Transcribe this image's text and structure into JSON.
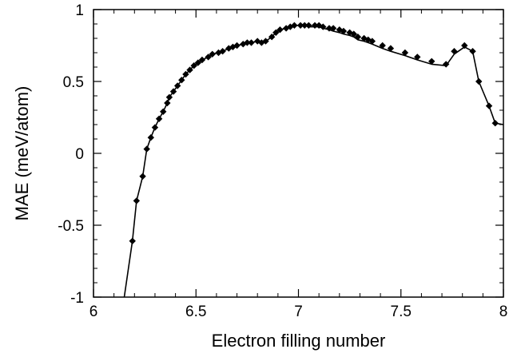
{
  "chart_data": {
    "type": "line",
    "title": "",
    "xlabel": "Electron filling number",
    "ylabel": "MAE (meV/atom)",
    "xlim": [
      6,
      8
    ],
    "ylim": [
      -1,
      1
    ],
    "x_ticks": [
      6,
      6.5,
      7,
      7.5,
      8
    ],
    "x_tick_labels": [
      "6",
      "6.5",
      "7",
      "7.5",
      "8"
    ],
    "y_ticks": [
      -1,
      -0.5,
      0,
      0.5,
      1
    ],
    "y_tick_labels": [
      "-1",
      "-0.5",
      "0",
      "0.5",
      "1"
    ],
    "grid": false,
    "legend": "none",
    "series": [
      {
        "style": "markers",
        "marker": "diamond",
        "color": "#000000",
        "x": [
          6.19,
          6.21,
          6.24,
          6.26,
          6.28,
          6.3,
          6.32,
          6.34,
          6.36,
          6.37,
          6.39,
          6.41,
          6.43,
          6.45,
          6.47,
          6.49,
          6.51,
          6.53,
          6.56,
          6.58,
          6.61,
          6.63,
          6.66,
          6.68,
          6.7,
          6.73,
          6.75,
          6.77,
          6.8,
          6.82,
          6.84,
          6.87,
          6.89,
          6.91,
          6.94,
          6.96,
          6.98,
          7.01,
          7.03,
          7.05,
          7.08,
          7.1,
          7.12,
          7.15,
          7.17,
          7.2,
          7.22,
          7.25,
          7.27,
          7.29,
          7.32,
          7.34,
          7.36,
          7.41,
          7.45,
          7.52,
          7.58,
          7.65,
          7.72,
          7.76,
          7.81,
          7.85,
          7.88,
          7.93,
          7.96
        ],
        "y": [
          -0.61,
          -0.33,
          -0.16,
          0.03,
          0.11,
          0.18,
          0.24,
          0.29,
          0.35,
          0.39,
          0.43,
          0.47,
          0.51,
          0.55,
          0.58,
          0.61,
          0.63,
          0.65,
          0.67,
          0.69,
          0.7,
          0.71,
          0.73,
          0.74,
          0.75,
          0.76,
          0.77,
          0.77,
          0.78,
          0.77,
          0.78,
          0.81,
          0.84,
          0.86,
          0.87,
          0.88,
          0.89,
          0.89,
          0.89,
          0.89,
          0.89,
          0.89,
          0.88,
          0.87,
          0.87,
          0.86,
          0.85,
          0.84,
          0.83,
          0.81,
          0.8,
          0.79,
          0.78,
          0.75,
          0.73,
          0.7,
          0.67,
          0.64,
          0.62,
          0.71,
          0.75,
          0.71,
          0.5,
          0.33,
          0.21
        ]
      },
      {
        "style": "line",
        "color": "#000000",
        "x": [
          6.15,
          6.19,
          6.21,
          6.24,
          6.26,
          6.28,
          6.3,
          6.32,
          6.34,
          6.36,
          6.37,
          6.39,
          6.41,
          6.43,
          6.45,
          6.47,
          6.49,
          6.51,
          6.53,
          6.56,
          6.58,
          6.61,
          6.63,
          6.66,
          6.68,
          6.7,
          6.73,
          6.75,
          6.77,
          6.8,
          6.82,
          6.84,
          6.87,
          6.89,
          6.91,
          6.94,
          6.96,
          6.98,
          7.01,
          7.03,
          7.05,
          7.08,
          7.1,
          7.12,
          7.15,
          7.17,
          7.2,
          7.22,
          7.25,
          7.27,
          7.29,
          7.32,
          7.34,
          7.36,
          7.41,
          7.45,
          7.52,
          7.58,
          7.65,
          7.72,
          7.76,
          7.81,
          7.85,
          7.88,
          7.93,
          7.96,
          8.0
        ],
        "y": [
          -1.0,
          -0.61,
          -0.33,
          -0.16,
          0.03,
          0.11,
          0.18,
          0.24,
          0.29,
          0.35,
          0.39,
          0.43,
          0.47,
          0.51,
          0.55,
          0.58,
          0.61,
          0.63,
          0.65,
          0.67,
          0.69,
          0.7,
          0.71,
          0.73,
          0.74,
          0.75,
          0.76,
          0.77,
          0.77,
          0.78,
          0.77,
          0.78,
          0.81,
          0.84,
          0.86,
          0.87,
          0.88,
          0.89,
          0.89,
          0.89,
          0.88,
          0.88,
          0.88,
          0.87,
          0.86,
          0.85,
          0.84,
          0.83,
          0.82,
          0.81,
          0.79,
          0.78,
          0.77,
          0.76,
          0.73,
          0.71,
          0.68,
          0.65,
          0.62,
          0.61,
          0.69,
          0.74,
          0.71,
          0.5,
          0.33,
          0.21,
          0.2
        ]
      }
    ]
  }
}
